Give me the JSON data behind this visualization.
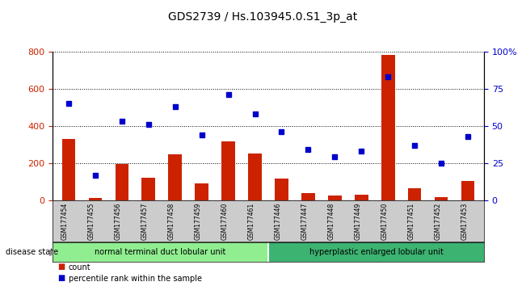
{
  "title": "GDS2739 / Hs.103945.0.S1_3p_at",
  "samples": [
    "GSM177454",
    "GSM177455",
    "GSM177456",
    "GSM177457",
    "GSM177458",
    "GSM177459",
    "GSM177460",
    "GSM177461",
    "GSM177446",
    "GSM177447",
    "GSM177448",
    "GSM177449",
    "GSM177450",
    "GSM177451",
    "GSM177452",
    "GSM177453"
  ],
  "counts": [
    330,
    10,
    195,
    120,
    245,
    90,
    315,
    250,
    115,
    40,
    25,
    30,
    780,
    65,
    15,
    105
  ],
  "percentiles": [
    65,
    17,
    53,
    51,
    63,
    44,
    71,
    58,
    46,
    34,
    29,
    33,
    83,
    37,
    25,
    43
  ],
  "group1_count": 8,
  "group2_count": 8,
  "group1_label": "normal terminal duct lobular unit",
  "group2_label": "hyperplastic enlarged lobular unit",
  "group1_color": "#90EE90",
  "group2_color": "#3CB371",
  "bar_color": "#CC2200",
  "dot_color": "#0000CC",
  "ylim_left": [
    0,
    800
  ],
  "ylim_right": [
    0,
    100
  ],
  "yticks_left": [
    0,
    200,
    400,
    600,
    800
  ],
  "yticks_right": [
    0,
    25,
    50,
    75,
    100
  ],
  "ytick_labels_right": [
    "0",
    "25",
    "50",
    "75",
    "100%"
  ],
  "tick_label_area_color": "#CCCCCC"
}
